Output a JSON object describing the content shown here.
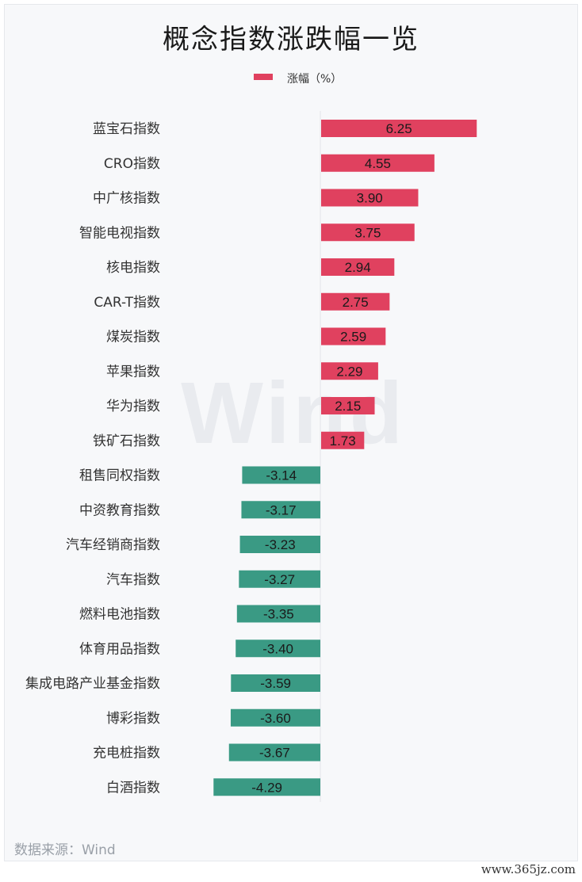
{
  "title": "概念指数涨跌幅一览",
  "legend": {
    "label": "涨幅（%）",
    "color": "#e0415f"
  },
  "watermark": "Wind",
  "source": "数据来源：Wind",
  "site": "www.365jz.com",
  "chart_data": {
    "type": "bar",
    "orientation": "horizontal",
    "categories": [
      "蓝宝石指数",
      "CRO指数",
      "中广核指数",
      "智能电视指数",
      "核电指数",
      "CAR-T指数",
      "煤炭指数",
      "苹果指数",
      "华为指数",
      "铁矿石指数",
      "租售同权指数",
      "中资教育指数",
      "汽车经销商指数",
      "汽车指数",
      "燃料电池指数",
      "体育用品指数",
      "集成电路产业基金指数",
      "博彩指数",
      "充电桩指数",
      "白酒指数"
    ],
    "series": [
      {
        "name": "涨幅（%）",
        "values": [
          6.25,
          4.55,
          3.9,
          3.75,
          2.94,
          2.75,
          2.59,
          2.29,
          2.15,
          1.73,
          -3.14,
          -3.17,
          -3.23,
          -3.27,
          -3.35,
          -3.4,
          -3.59,
          -3.6,
          -3.67,
          -4.29
        ]
      }
    ],
    "value_labels": [
      "6.25",
      "4.55",
      "3.90",
      "3.75",
      "2.94",
      "2.75",
      "2.59",
      "2.29",
      "2.15",
      "1.73",
      "-3.14",
      "-3.17",
      "-3.23",
      "-3.27",
      "-3.35",
      "-3.40",
      "-3.59",
      "-3.60",
      "-3.67",
      "-4.29"
    ],
    "positive_color": "#e0415f",
    "negative_color": "#3a9a84",
    "grid": false,
    "legend_position": "top-center"
  }
}
